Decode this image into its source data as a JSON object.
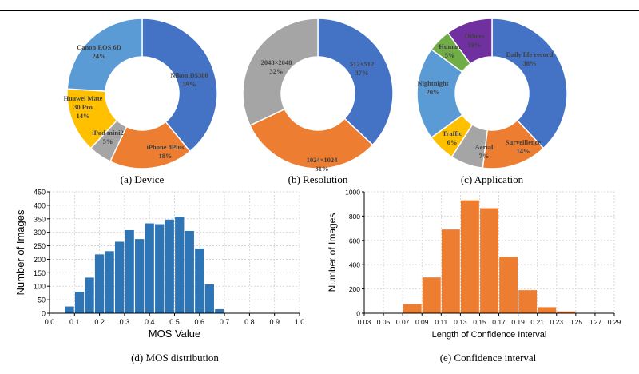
{
  "chart_data": [
    {
      "type": "pie",
      "caption": "(a) Device",
      "slices": [
        {
          "label": "Nikon D5300",
          "value": 39,
          "text": "39%",
          "color": "#4472C4"
        },
        {
          "label": "iPhone 8Plus",
          "value": 18,
          "text": "18%",
          "color": "#ED7D31"
        },
        {
          "label": "iPad mini2",
          "value": 5,
          "text": "5%",
          "color": "#A5A5A5"
        },
        {
          "label": "Huawei Mate 30 Pro",
          "value": 14,
          "text": "14%",
          "color": "#FFC000"
        },
        {
          "label": "Canon EOS 6D",
          "value": 24,
          "text": "24%",
          "color": "#5B9BD5"
        }
      ]
    },
    {
      "type": "pie",
      "caption": "(b) Resolution",
      "slices": [
        {
          "label": "512×512",
          "value": 37,
          "text": "37%",
          "color": "#4472C4"
        },
        {
          "label": "1024×1024",
          "value": 31,
          "text": "31%",
          "color": "#ED7D31"
        },
        {
          "label": "2048×2048",
          "value": 32,
          "text": "32%",
          "color": "#A5A5A5"
        }
      ]
    },
    {
      "type": "pie",
      "caption": "(c) Application",
      "slices": [
        {
          "label": "Daily life record",
          "value": 38,
          "text": "38%",
          "color": "#4472C4"
        },
        {
          "label": "Surveillence",
          "value": 14,
          "text": "14%",
          "color": "#ED7D31"
        },
        {
          "label": "Aerial",
          "value": 7,
          "text": "7%",
          "color": "#A5A5A5"
        },
        {
          "label": "Traffic",
          "value": 6,
          "text": "6%",
          "color": "#FFC000"
        },
        {
          "label": "Nightnight",
          "value": 20,
          "text": "20%",
          "color": "#5B9BD5"
        },
        {
          "label": "Human",
          "value": 5,
          "text": "5%",
          "color": "#70AD47"
        },
        {
          "label": "Others",
          "value": 10,
          "text": "10%",
          "color": "#7030A0"
        }
      ]
    },
    {
      "type": "bar",
      "caption": "(d) MOS distribution",
      "xlabel": "MOS Value",
      "ylabel": "Number of Images",
      "xlim": [
        0.0,
        1.0
      ],
      "ylim": [
        0,
        450
      ],
      "xticks": [
        "0.0",
        "0.1",
        "0.2",
        "0.3",
        "0.4",
        "0.5",
        "0.6",
        "0.7",
        "0.8",
        "0.9",
        "1.0"
      ],
      "yticks": [
        "0",
        "50",
        "100",
        "150",
        "200",
        "250",
        "300",
        "350",
        "400",
        "450"
      ],
      "bin_width": 0.04,
      "x": [
        0.08,
        0.12,
        0.16,
        0.2,
        0.24,
        0.28,
        0.32,
        0.36,
        0.4,
        0.44,
        0.48,
        0.52,
        0.56,
        0.6,
        0.64,
        0.68,
        0.72,
        0.76,
        0.8
      ],
      "values": [
        25,
        80,
        132,
        218,
        230,
        265,
        308,
        275,
        333,
        330,
        347,
        358,
        305,
        240,
        107,
        15,
        0,
        0,
        0
      ],
      "color": "#2E75B6",
      "grid": true
    },
    {
      "type": "bar",
      "caption": "(e) Confidence interval",
      "xlabel": "Length of Confidence Interval",
      "ylabel": "Number of Images",
      "xlim": [
        0.03,
        0.29
      ],
      "ylim": [
        0,
        1000
      ],
      "xticks": [
        "0.03",
        "0.05",
        "0.07",
        "0.09",
        "0.11",
        "0.13",
        "0.15",
        "0.17",
        "0.19",
        "0.21",
        "0.23",
        "0.25",
        "0.27",
        "0.29"
      ],
      "yticks": [
        "0",
        "200",
        "400",
        "600",
        "800",
        "1000"
      ],
      "bin_width": 0.02,
      "x": [
        0.08,
        0.1,
        0.12,
        0.14,
        0.16,
        0.18,
        0.2,
        0.22,
        0.24
      ],
      "values": [
        75,
        295,
        690,
        930,
        865,
        465,
        190,
        50,
        15
      ],
      "color": "#ED7D31",
      "grid": true
    }
  ]
}
